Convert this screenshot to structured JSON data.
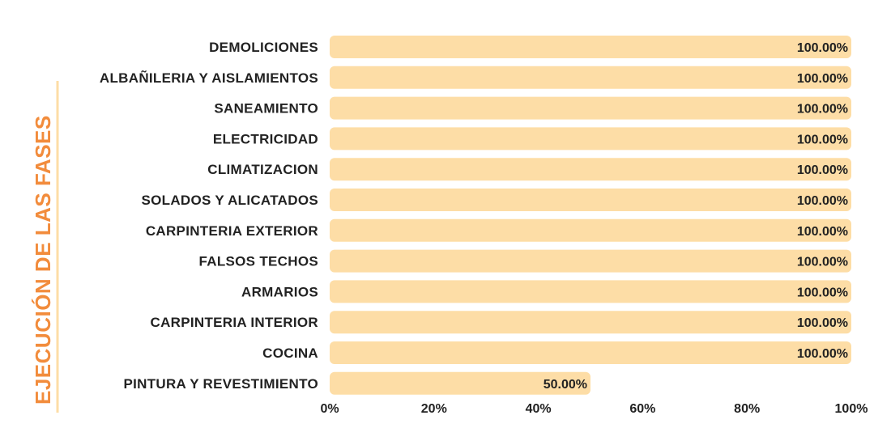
{
  "chart_data": {
    "type": "bar",
    "orientation": "horizontal",
    "ylabel": "EJECUCIÓN DE LAS FASES",
    "categories": [
      "DEMOLICIONES",
      "ALBAÑILERIA Y AISLAMIENTOS",
      "SANEAMIENTO",
      "ELECTRICIDAD",
      "CLIMATIZACION",
      "SOLADOS Y ALICATADOS",
      "CARPINTERIA EXTERIOR",
      "FALSOS TECHOS",
      "ARMARIOS",
      "CARPINTERIA INTERIOR",
      "COCINA",
      "PINTURA Y REVESTIMIENTO"
    ],
    "values": [
      100,
      100,
      100,
      100,
      100,
      100,
      100,
      100,
      100,
      100,
      100,
      50
    ],
    "value_labels": [
      "100.00%",
      "100.00%",
      "100.00%",
      "100.00%",
      "100.00%",
      "100.00%",
      "100.00%",
      "100.00%",
      "100.00%",
      "100.00%",
      "100.00%",
      "50.00%"
    ],
    "xticks": [
      0,
      20,
      40,
      60,
      80,
      100
    ],
    "xtick_labels": [
      "0%",
      "20%",
      "40%",
      "60%",
      "80%",
      "100%"
    ],
    "xlim": [
      0,
      100
    ],
    "grid": false,
    "legend": "none",
    "colors": {
      "bar": "#FDDDA6",
      "ylabel": "#F28C3C",
      "text": "#222222"
    }
  }
}
